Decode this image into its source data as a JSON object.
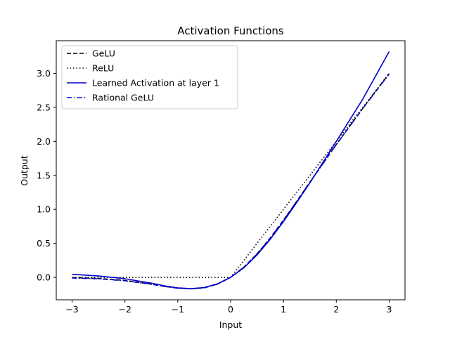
{
  "chart_data": {
    "type": "line",
    "title": "Activation Functions",
    "xlabel": "Input",
    "ylabel": "Output",
    "xlim": [
      -3.3,
      3.3
    ],
    "ylim": [
      -0.33,
      3.48
    ],
    "xticks": [
      -3,
      -2,
      -1,
      0,
      1,
      2,
      3
    ],
    "xtick_labels": [
      "−3",
      "−2",
      "−1",
      "0",
      "1",
      "2",
      "3"
    ],
    "yticks": [
      0.0,
      0.5,
      1.0,
      1.5,
      2.0,
      2.5,
      3.0
    ],
    "ytick_labels": [
      "0.0",
      "0.5",
      "1.0",
      "1.5",
      "2.0",
      "2.5",
      "3.0"
    ],
    "grid": false,
    "legend_position": "top-left",
    "series": [
      {
        "name": "GeLU",
        "color": "#000000",
        "style": "dashed",
        "x": [
          -3.0,
          -2.5,
          -2.0,
          -1.5,
          -1.25,
          -1.0,
          -0.75,
          -0.5,
          -0.25,
          0.0,
          0.25,
          0.5,
          0.75,
          1.0,
          1.25,
          1.5,
          2.0,
          2.5,
          3.0
        ],
        "y": [
          -0.004,
          -0.016,
          -0.045,
          -0.1,
          -0.132,
          -0.159,
          -0.17,
          -0.154,
          -0.1,
          0.0,
          0.15,
          0.346,
          0.58,
          0.841,
          1.118,
          1.4,
          1.955,
          2.484,
          2.996
        ]
      },
      {
        "name": "ReLU",
        "color": "#000000",
        "style": "dotted",
        "x": [
          -3.0,
          0.0,
          3.0
        ],
        "y": [
          0.0,
          0.0,
          3.0
        ]
      },
      {
        "name": "Learned Activation at layer 1",
        "color": "#0000cc",
        "style": "solid",
        "x": [
          -3.0,
          -2.5,
          -2.0,
          -1.5,
          -1.25,
          -1.0,
          -0.75,
          -0.5,
          -0.25,
          0.0,
          0.25,
          0.5,
          0.75,
          1.0,
          1.25,
          1.5,
          2.0,
          2.5,
          3.0
        ],
        "y": [
          0.045,
          0.02,
          -0.02,
          -0.085,
          -0.125,
          -0.155,
          -0.165,
          -0.15,
          -0.095,
          0.0,
          0.14,
          0.33,
          0.56,
          0.82,
          1.1,
          1.39,
          2.0,
          2.62,
          3.32
        ]
      },
      {
        "name": "Rational GeLU",
        "color": "#0000cc",
        "style": "dashdot",
        "x": [
          -3.0,
          -2.5,
          -2.0,
          -1.5,
          -1.25,
          -1.0,
          -0.75,
          -0.5,
          -0.25,
          0.0,
          0.25,
          0.5,
          0.75,
          1.0,
          1.25,
          1.5,
          2.0,
          2.5,
          3.0
        ],
        "y": [
          -0.01,
          -0.022,
          -0.05,
          -0.102,
          -0.133,
          -0.16,
          -0.17,
          -0.154,
          -0.1,
          0.0,
          0.148,
          0.344,
          0.578,
          0.838,
          1.115,
          1.398,
          1.952,
          2.482,
          2.99
        ]
      }
    ]
  }
}
